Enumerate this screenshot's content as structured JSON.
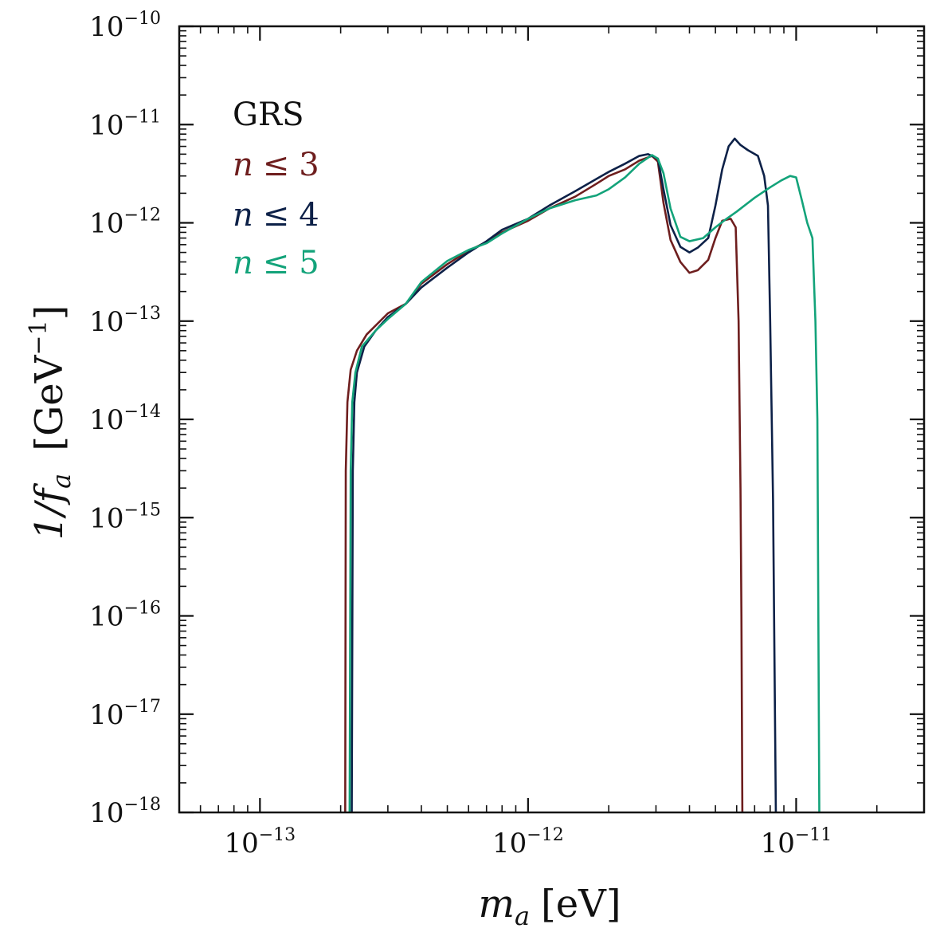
{
  "chart_data": {
    "type": "line",
    "xscale": "log",
    "yscale": "log",
    "xlim": [
      5e-14,
      3e-11
    ],
    "ylim": [
      1e-18,
      1e-10
    ],
    "xlabel": {
      "main": "m",
      "sub": "a",
      "unit": "[eV]"
    },
    "ylabel": {
      "main": "1/f",
      "sub": "a",
      "unit": "[GeV",
      "unit_exp": "−1",
      "unit_close": "]"
    },
    "x_ticks": [
      {
        "value": 1e-13,
        "base": "10",
        "exp": "−13"
      },
      {
        "value": 1e-12,
        "base": "10",
        "exp": "−12"
      },
      {
        "value": 1e-11,
        "base": "10",
        "exp": "−11"
      }
    ],
    "y_ticks": [
      {
        "value": 1e-10,
        "base": "10",
        "exp": "−10"
      },
      {
        "value": 1e-11,
        "base": "10",
        "exp": "−11"
      },
      {
        "value": 1e-12,
        "base": "10",
        "exp": "−12"
      },
      {
        "value": 1e-13,
        "base": "10",
        "exp": "−13"
      },
      {
        "value": 1e-14,
        "base": "10",
        "exp": "−14"
      },
      {
        "value": 1e-15,
        "base": "10",
        "exp": "−15"
      },
      {
        "value": 1e-16,
        "base": "10",
        "exp": "−16"
      },
      {
        "value": 1e-17,
        "base": "10",
        "exp": "−17"
      },
      {
        "value": 1e-18,
        "base": "10",
        "exp": "−18"
      }
    ],
    "legend": {
      "title": "GRS",
      "position": "top-left",
      "entries": [
        {
          "var": "n",
          "rel": "≤",
          "num": "3",
          "color": "#6e1e1e"
        },
        {
          "var": "n",
          "rel": "≤",
          "num": "4",
          "color": "#0d2148"
        },
        {
          "var": "n",
          "rel": "≤",
          "num": "5",
          "color": "#13a37a"
        }
      ]
    },
    "series": [
      {
        "name": "n ≤ 3",
        "color": "#6e1e1e",
        "points": [
          [
            2.08e-13,
            1e-18
          ],
          [
            2.09e-13,
            3e-15
          ],
          [
            2.12e-13,
            1.5e-14
          ],
          [
            2.18e-13,
            3.2e-14
          ],
          [
            2.3e-13,
            5e-14
          ],
          [
            2.5e-13,
            7.3e-14
          ],
          [
            3e-13,
            1.2e-13
          ],
          [
            3.5e-13,
            1.5e-13
          ],
          [
            4e-13,
            2.4e-13
          ],
          [
            5e-13,
            3.8e-13
          ],
          [
            6e-13,
            5.2e-13
          ],
          [
            7e-13,
            6.4e-13
          ],
          [
            8e-13,
            8e-13
          ],
          [
            1e-12,
            1.05e-12
          ],
          [
            1.2e-12,
            1.4e-12
          ],
          [
            1.5e-12,
            1.85e-12
          ],
          [
            1.8e-12,
            2.5e-12
          ],
          [
            2e-12,
            3e-12
          ],
          [
            2.3e-12,
            3.5e-12
          ],
          [
            2.6e-12,
            4.3e-12
          ],
          [
            2.9e-12,
            4.8e-12
          ],
          [
            3.05e-12,
            4.2e-12
          ],
          [
            3.2e-12,
            1.6e-12
          ],
          [
            3.4e-12,
            6.7e-13
          ],
          [
            3.7e-12,
            4e-13
          ],
          [
            4e-12,
            3.1e-13
          ],
          [
            4.3e-12,
            3.3e-13
          ],
          [
            4.7e-12,
            4.2e-13
          ],
          [
            5e-12,
            7e-13
          ],
          [
            5.3e-12,
            1.05e-12
          ],
          [
            5.7e-12,
            1.1e-12
          ],
          [
            5.95e-12,
            9e-13
          ],
          [
            6.1e-12,
            1e-13
          ],
          [
            6.2e-12,
            2e-15
          ],
          [
            6.25e-12,
            1e-16
          ],
          [
            6.3e-12,
            1e-18
          ]
        ]
      },
      {
        "name": "n ≤ 4",
        "color": "#0d2148",
        "points": [
          [
            2.2e-13,
            1e-18
          ],
          [
            2.22e-13,
            3e-15
          ],
          [
            2.25e-13,
            1.5e-14
          ],
          [
            2.3e-13,
            3e-14
          ],
          [
            2.45e-13,
            5.5e-14
          ],
          [
            2.7e-13,
            8e-14
          ],
          [
            3e-13,
            1.1e-13
          ],
          [
            3.5e-13,
            1.5e-13
          ],
          [
            4e-13,
            2.2e-13
          ],
          [
            5e-13,
            3.5e-13
          ],
          [
            6e-13,
            5e-13
          ],
          [
            7e-13,
            6.5e-13
          ],
          [
            8e-13,
            8.5e-13
          ],
          [
            1e-12,
            1.1e-12
          ],
          [
            1.2e-12,
            1.5e-12
          ],
          [
            1.5e-12,
            2.1e-12
          ],
          [
            1.8e-12,
            2.8e-12
          ],
          [
            2e-12,
            3.3e-12
          ],
          [
            2.3e-12,
            4e-12
          ],
          [
            2.6e-12,
            4.8e-12
          ],
          [
            2.8e-12,
            5e-12
          ],
          [
            3.05e-12,
            4.5e-12
          ],
          [
            3.2e-12,
            2.2e-12
          ],
          [
            3.4e-12,
            9.5e-13
          ],
          [
            3.7e-12,
            5.7e-13
          ],
          [
            4e-12,
            5e-13
          ],
          [
            4.3e-12,
            5.6e-13
          ],
          [
            4.7e-12,
            7e-13
          ],
          [
            5e-12,
            1.5e-12
          ],
          [
            5.3e-12,
            3.5e-12
          ],
          [
            5.6e-12,
            6e-12
          ],
          [
            5.9e-12,
            7.2e-12
          ],
          [
            6.2e-12,
            6.2e-12
          ],
          [
            6.6e-12,
            5.5e-12
          ],
          [
            7.2e-12,
            4.8e-12
          ],
          [
            7.6e-12,
            3e-12
          ],
          [
            7.85e-12,
            1.5e-12
          ],
          [
            8e-12,
            1e-13
          ],
          [
            8.2e-12,
            1.5e-15
          ],
          [
            8.4e-12,
            1e-18
          ]
        ]
      },
      {
        "name": "n ≤ 5",
        "color": "#13a37a",
        "points": [
          [
            2.16e-13,
            1e-18
          ],
          [
            2.18e-13,
            3e-15
          ],
          [
            2.21e-13,
            1.5e-14
          ],
          [
            2.27e-13,
            3e-14
          ],
          [
            2.4e-13,
            5.5e-14
          ],
          [
            2.7e-13,
            8e-14
          ],
          [
            3e-13,
            1.05e-13
          ],
          [
            3.5e-13,
            1.5e-13
          ],
          [
            4e-13,
            2.5e-13
          ],
          [
            5e-13,
            4.1e-13
          ],
          [
            6e-13,
            5.3e-13
          ],
          [
            7e-13,
            6.2e-13
          ],
          [
            8e-13,
            7.8e-13
          ],
          [
            1e-12,
            1.1e-12
          ],
          [
            1.2e-12,
            1.4e-12
          ],
          [
            1.5e-12,
            1.7e-12
          ],
          [
            1.8e-12,
            1.9e-12
          ],
          [
            2e-12,
            2.2e-12
          ],
          [
            2.3e-12,
            2.9e-12
          ],
          [
            2.6e-12,
            4e-12
          ],
          [
            2.9e-12,
            4.9e-12
          ],
          [
            3.05e-12,
            4.5e-12
          ],
          [
            3.2e-12,
            3.2e-12
          ],
          [
            3.4e-12,
            1.4e-12
          ],
          [
            3.7e-12,
            7.2e-13
          ],
          [
            4e-12,
            6.5e-13
          ],
          [
            4.5e-12,
            7e-13
          ],
          [
            5e-12,
            9e-13
          ],
          [
            5.5e-12,
            1.1e-12
          ],
          [
            6e-12,
            1.3e-12
          ],
          [
            7e-12,
            1.8e-12
          ],
          [
            8e-12,
            2.3e-12
          ],
          [
            8.8e-12,
            2.7e-12
          ],
          [
            9.5e-12,
            3e-12
          ],
          [
            1e-11,
            2.9e-12
          ],
          [
            1.05e-11,
            1.7e-12
          ],
          [
            1.1e-11,
            1e-12
          ],
          [
            1.15e-11,
            7e-13
          ],
          [
            1.18e-11,
            1e-13
          ],
          [
            1.2e-11,
            1e-14
          ],
          [
            1.21e-11,
            1e-16
          ],
          [
            1.22e-11,
            1e-18
          ]
        ]
      }
    ]
  }
}
